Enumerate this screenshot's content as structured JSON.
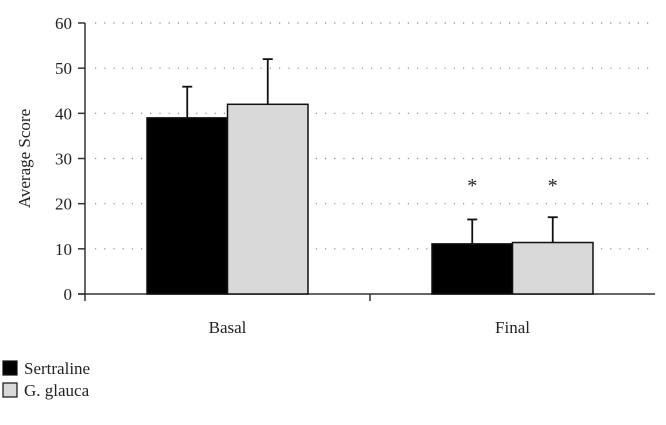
{
  "chart_data": {
    "type": "bar",
    "title": "",
    "xlabel": "",
    "ylabel": "Average Score",
    "ylim": [
      0,
      60
    ],
    "yticks": [
      0,
      10,
      20,
      30,
      40,
      50,
      60
    ],
    "grid": "horizontal dotted",
    "categories": [
      "Basal",
      "Final"
    ],
    "series": [
      {
        "name": "Sertraline",
        "color": "#000000",
        "values": [
          39,
          11.1
        ],
        "error_upper": [
          45.9,
          16.5
        ]
      },
      {
        "name": "G. glauca",
        "color": "#d9d9d9",
        "values": [
          42,
          11.4
        ],
        "error_upper": [
          52,
          17
        ]
      }
    ],
    "annotations": [
      {
        "category": "Final",
        "series": "Sertraline",
        "text": "*"
      },
      {
        "category": "Final",
        "series": "G. glauca",
        "text": "*"
      }
    ],
    "legend_placement": "bottom-left"
  }
}
